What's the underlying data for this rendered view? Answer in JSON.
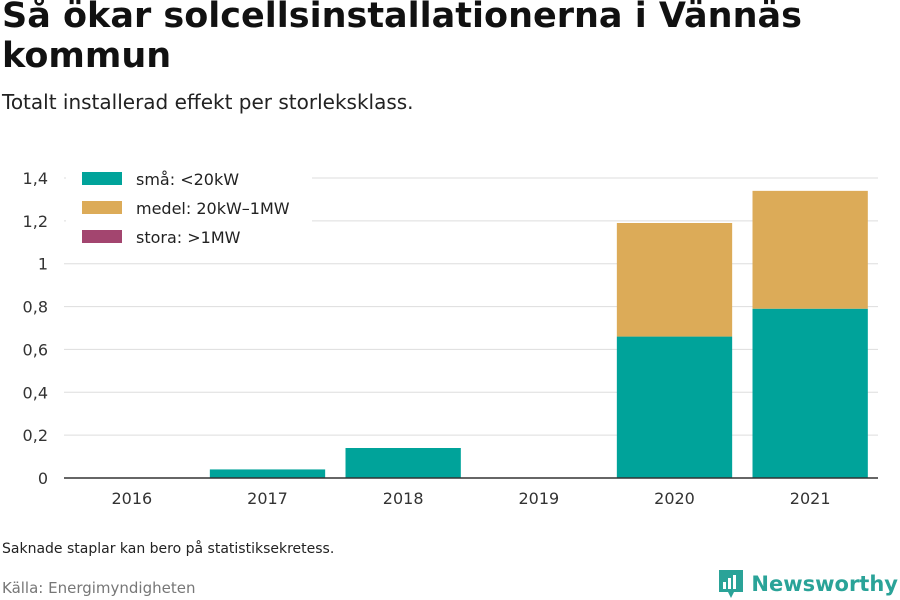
{
  "title": "Så ökar solcellsinstallationerna i Vännäs kommun",
  "subtitle": "Totalt installerad effekt per storleksklass.",
  "footnote": "Saknade staplar kan bero på statistiksekretess.",
  "source": "Källa: Energimyndigheten",
  "brand": {
    "name": "Newsworthy",
    "icon": "newsworthy-logo-icon",
    "color": "#2aa398"
  },
  "chart_data": {
    "type": "bar",
    "stacked": true,
    "categories": [
      "2016",
      "2017",
      "2018",
      "2019",
      "2020",
      "2021"
    ],
    "series": [
      {
        "name": "små: <20kW",
        "color": "#00a39a",
        "values": [
          0,
          0.04,
          0.14,
          0,
          0.66,
          0.79
        ]
      },
      {
        "name": "medel: 20kW–1MW",
        "color": "#dcab58",
        "values": [
          0,
          0,
          0,
          0,
          0.53,
          0.55
        ]
      },
      {
        "name": "stora: >1MW",
        "color": "#a3456f",
        "values": [
          0,
          0,
          0,
          0,
          0,
          0
        ]
      }
    ],
    "yticks": [
      "0",
      "0,2",
      "0,4",
      "0,6",
      "0,8",
      "1",
      "1,2",
      "1,4"
    ],
    "ylim": [
      0,
      1.4
    ],
    "grid": true,
    "legend": "top-left"
  }
}
